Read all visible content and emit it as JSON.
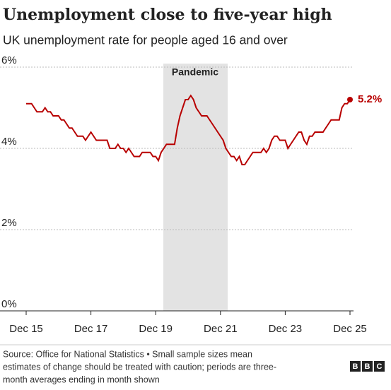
{
  "chart_data": {
    "type": "line",
    "title": "Unemployment close to five-year high",
    "subtitle": "UK unemployment rate for people aged 16 and over",
    "source": [
      "Source: Office for National Statistics • Small sample sizes mean",
      "estimates of change should be treated with caution; periods are three-",
      "month averages ending in month shown"
    ],
    "logo": [
      "B",
      "B",
      "C"
    ],
    "shaded_label": "Pandemic",
    "categories": [
      "Dec 15",
      null,
      null,
      null,
      null,
      null,
      null,
      null,
      null,
      null,
      null,
      null,
      null,
      null,
      null,
      null,
      null,
      null,
      null,
      null,
      null,
      null,
      null,
      null,
      "Dec 17",
      null,
      null,
      null,
      null,
      null,
      null,
      null,
      null,
      null,
      null,
      null,
      null,
      null,
      null,
      null,
      null,
      null,
      null,
      null,
      null,
      null,
      null,
      null,
      "Dec 19",
      null,
      null,
      null,
      null,
      null,
      null,
      null,
      null,
      null,
      null,
      null,
      null,
      null,
      null,
      null,
      null,
      null,
      null,
      null,
      null,
      null,
      null,
      null,
      "Dec 21",
      null,
      null,
      null,
      null,
      null,
      null,
      null,
      null,
      null,
      null,
      null,
      null,
      null,
      null,
      null,
      null,
      null,
      null,
      null,
      null,
      null,
      null,
      null,
      "Dec 23",
      null,
      null,
      null,
      null,
      null,
      null,
      null,
      null,
      null,
      null,
      null,
      null,
      null,
      null,
      null,
      null,
      null,
      null,
      null,
      null,
      null,
      null,
      null,
      "Dec 25"
    ],
    "series": [
      {
        "name": "Unemployment rate",
        "color": "#b80000",
        "values": [
          5.1,
          5.1,
          5.1,
          5.0,
          4.9,
          4.9,
          4.9,
          5.0,
          4.9,
          4.9,
          4.8,
          4.8,
          4.8,
          4.7,
          4.7,
          4.6,
          4.5,
          4.5,
          4.4,
          4.3,
          4.3,
          4.3,
          4.2,
          4.3,
          4.4,
          4.3,
          4.2,
          4.2,
          4.2,
          4.2,
          4.2,
          4.0,
          4.0,
          4.0,
          4.1,
          4.0,
          4.0,
          3.9,
          4.0,
          3.9,
          3.8,
          3.8,
          3.8,
          3.9,
          3.9,
          3.9,
          3.9,
          3.8,
          3.8,
          3.7,
          3.9,
          4.0,
          4.1,
          4.1,
          4.1,
          4.1,
          4.5,
          4.8,
          5.0,
          5.2,
          5.2,
          5.3,
          5.2,
          5.0,
          4.9,
          4.8,
          4.8,
          4.8,
          4.7,
          4.6,
          4.5,
          4.4,
          4.3,
          4.2,
          4.0,
          3.9,
          3.8,
          3.8,
          3.7,
          3.8,
          3.6,
          3.6,
          3.7,
          3.8,
          3.9,
          3.9,
          3.9,
          3.9,
          4.0,
          3.9,
          4.0,
          4.2,
          4.3,
          4.3,
          4.2,
          4.2,
          4.2,
          4.0,
          4.1,
          4.2,
          4.3,
          4.4,
          4.4,
          4.2,
          4.1,
          4.3,
          4.3,
          4.4,
          4.4,
          4.4,
          4.4,
          4.5,
          4.6,
          4.7,
          4.7,
          4.7,
          4.7,
          5.0,
          5.1,
          5.1,
          5.2
        ],
        "value_labels": [
          null,
          null,
          null,
          null,
          null,
          null,
          null,
          null,
          null,
          null,
          null,
          null,
          null,
          null,
          null,
          null,
          null,
          null,
          null,
          null,
          null,
          null,
          null,
          null,
          null,
          null,
          null,
          null,
          null,
          null,
          null,
          null,
          null,
          null,
          null,
          null,
          null,
          null,
          null,
          null,
          null,
          null,
          null,
          null,
          null,
          null,
          null,
          null,
          null,
          null,
          null,
          null,
          null,
          null,
          null,
          null,
          null,
          null,
          null,
          null,
          null,
          null,
          null,
          null,
          null,
          null,
          null,
          null,
          null,
          null,
          null,
          null,
          null,
          null,
          null,
          null,
          null,
          null,
          null,
          null,
          null,
          null,
          null,
          null,
          null,
          null,
          null,
          null,
          null,
          null,
          null,
          null,
          null,
          null,
          null,
          null,
          null,
          null,
          null,
          null,
          null,
          null,
          null,
          null,
          null,
          null,
          null,
          null,
          null,
          null,
          null,
          null,
          null,
          null,
          null,
          null,
          null,
          null,
          null,
          null,
          "5.2%"
        ]
      }
    ],
    "ylim": [
      0,
      6
    ],
    "yticks": [
      {
        "value": 0,
        "label": "0%"
      },
      {
        "value": 2,
        "label": "2%"
      },
      {
        "value": 4,
        "label": "4%"
      },
      {
        "value": 6,
        "label": "6%"
      }
    ],
    "grid": true
  }
}
